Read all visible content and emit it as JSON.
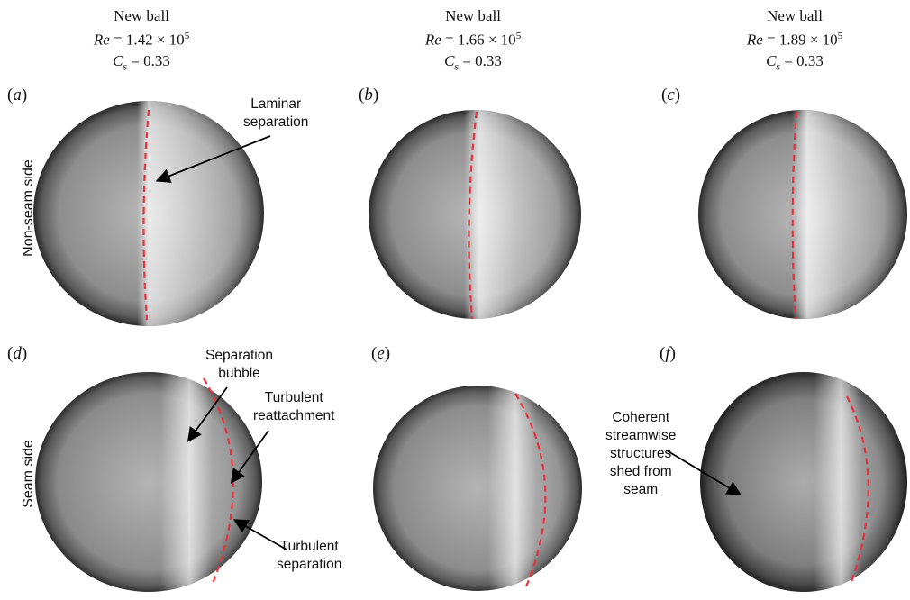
{
  "headers": [
    {
      "line1": "New ball",
      "re_label": "Re",
      "re_value": " = 1.42 × 10",
      "re_exp": "5",
      "cs_label": "C",
      "cs_sub": "s",
      "cs_value": " = 0.33"
    },
    {
      "line1": "New ball",
      "re_label": "Re",
      "re_value": " = 1.66 × 10",
      "re_exp": "5",
      "cs_label": "C",
      "cs_sub": "s",
      "cs_value": " = 0.33"
    },
    {
      "line1": "New ball",
      "re_label": "Re",
      "re_value": " = 1.89 × 10",
      "re_exp": "5",
      "cs_label": "C",
      "cs_sub": "s",
      "cs_value": " = 0.33"
    }
  ],
  "panel_labels": [
    "a",
    "b",
    "c",
    "d",
    "e",
    "f"
  ],
  "row_labels": [
    "Non-seam side",
    "Seam side"
  ],
  "annotations": {
    "laminar_separation": [
      "Laminar",
      "separation"
    ],
    "separation_bubble": [
      "Separation",
      "bubble"
    ],
    "turbulent_reattachment": [
      "Turbulent",
      "reattachment"
    ],
    "turbulent_separation": [
      "Turbulent",
      "separation"
    ],
    "coherent_structures": [
      "Coherent",
      "streamwise",
      "structures",
      "shed from",
      "seam"
    ]
  },
  "colors": {
    "separation_line": "#e8323c",
    "ball_dark": "#2a2a2a",
    "ball_mid": "#8a8a8a",
    "ball_light": "#f2f2f2"
  }
}
